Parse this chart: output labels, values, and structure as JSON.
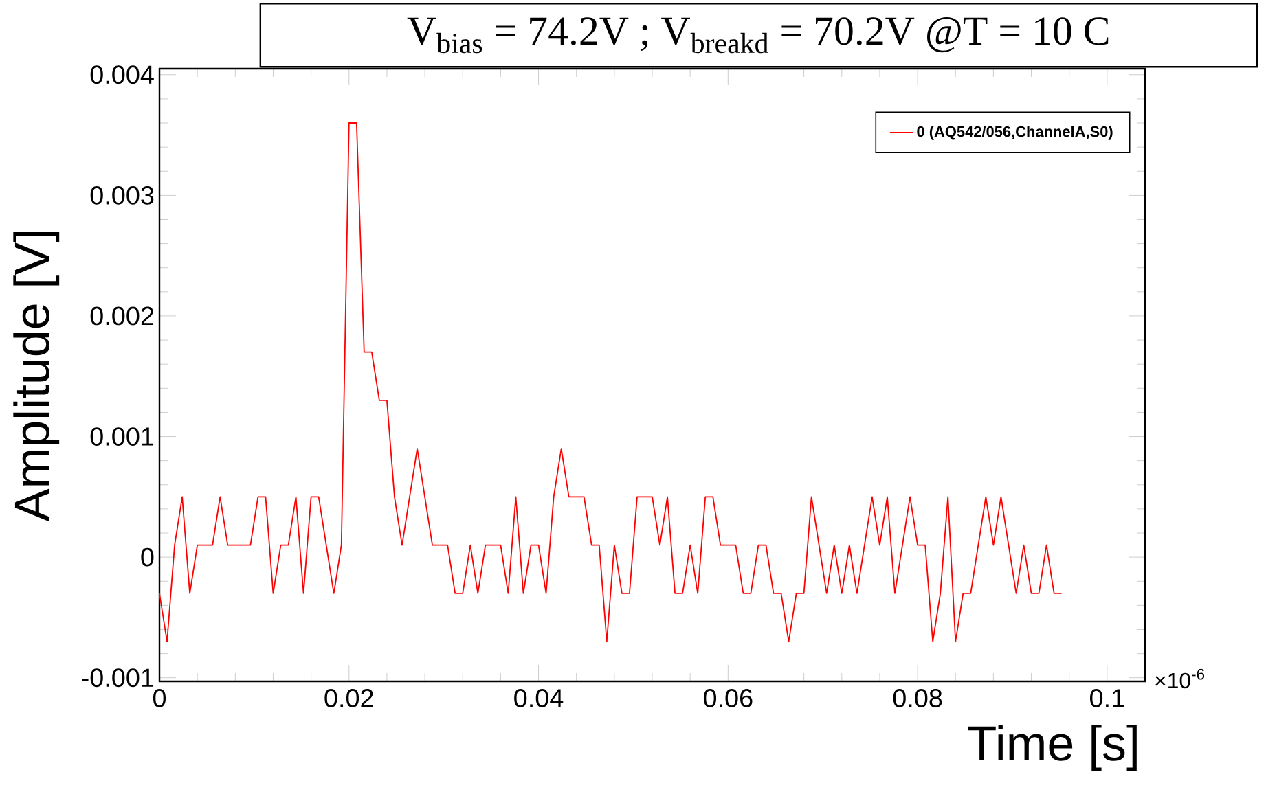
{
  "chart_data": {
    "type": "line",
    "title": "V$_{bias}$ = 74.2V ;  V$_{breakd}$ = 70.2V     @T = 10 C",
    "xlabel": "Time [s]",
    "ylabel": "Amplitude [V]",
    "annotations": [
      "×10$^{-6}$"
    ],
    "xlim": [
      0,
      0.104
    ],
    "ylim": [
      -0.00103,
      0.00405
    ],
    "xticks": [
      0,
      0.02,
      0.04,
      0.06,
      0.08,
      0.1
    ],
    "yticks": [
      -0.001,
      0,
      0.001,
      0.002,
      0.003,
      0.004
    ],
    "legend": "top right",
    "series": [
      {
        "name": "0 (AQ542/056,ChannelA,S0)",
        "color": "#ff0000",
        "x": [
          0,
          0.0008,
          0.0016,
          0.0024,
          0.0032,
          0.004,
          0.0048,
          0.0056,
          0.0064,
          0.0072,
          0.008,
          0.0088,
          0.0096,
          0.0104,
          0.0112,
          0.012,
          0.0128,
          0.0136,
          0.0144,
          0.0152,
          0.016,
          0.0168,
          0.0176,
          0.0184,
          0.0192,
          0.02,
          0.0208,
          0.0216,
          0.0224,
          0.0232,
          0.024,
          0.0248,
          0.0256,
          0.0264,
          0.0272,
          0.028,
          0.0288,
          0.0296,
          0.0304,
          0.0312,
          0.032,
          0.0328,
          0.0336,
          0.0344,
          0.0352,
          0.036,
          0.0368,
          0.0376,
          0.0384,
          0.0392,
          0.04,
          0.0408,
          0.0416,
          0.0424,
          0.0432,
          0.044,
          0.0448,
          0.0456,
          0.0464,
          0.0472,
          0.048,
          0.0488,
          0.0496,
          0.0504,
          0.0512,
          0.052,
          0.0528,
          0.0536,
          0.0544,
          0.0552,
          0.056,
          0.0568,
          0.0576,
          0.0584,
          0.0592,
          0.06,
          0.0608,
          0.0616,
          0.0624,
          0.0632,
          0.064,
          0.0648,
          0.0656,
          0.0664,
          0.0672,
          0.068,
          0.0688,
          0.0696,
          0.0704,
          0.0712,
          0.072,
          0.0728,
          0.0736,
          0.0744,
          0.0752,
          0.076,
          0.0768,
          0.0776,
          0.0784,
          0.0792,
          0.08,
          0.0808,
          0.0816,
          0.0824,
          0.0832,
          0.084,
          0.0848,
          0.0856,
          0.0864,
          0.0872,
          0.088,
          0.0888,
          0.0896,
          0.0904,
          0.0912,
          0.092,
          0.0928,
          0.0936,
          0.0944,
          0.0952
        ],
        "values": [
          -0.0003,
          -0.0007,
          0.0001,
          0.0005,
          -0.0003,
          0.0001,
          0.0001,
          0.0001,
          0.0005,
          0.0001,
          0.0001,
          0.0001,
          0.0001,
          0.0005,
          0.0005,
          -0.0003,
          0.0001,
          0.0001,
          0.0005,
          -0.0003,
          0.0005,
          0.0005,
          0.0001,
          -0.0003,
          0.0001,
          0.0036,
          0.0036,
          0.0017,
          0.0017,
          0.0013,
          0.0013,
          0.0005,
          0.0001,
          0.0005,
          0.0009,
          0.0005,
          0.0001,
          0.0001,
          0.0001,
          -0.0003,
          -0.0003,
          0.0001,
          -0.0003,
          0.0001,
          0.0001,
          0.0001,
          -0.0003,
          0.0005,
          -0.0003,
          0.0001,
          0.0001,
          -0.0003,
          0.0005,
          0.0009,
          0.0005,
          0.0005,
          0.0005,
          0.0001,
          0.0001,
          -0.0007,
          0.0001,
          -0.0003,
          -0.0003,
          0.0005,
          0.0005,
          0.0005,
          0.0001,
          0.0005,
          -0.0003,
          -0.0003,
          0.0001,
          -0.0003,
          0.0005,
          0.0005,
          0.0001,
          0.0001,
          0.0001,
          -0.0003,
          -0.0003,
          0.0001,
          0.0001,
          -0.0003,
          -0.0003,
          -0.0007,
          -0.0003,
          -0.0003,
          0.0005,
          0.0001,
          -0.0003,
          0.0001,
          -0.0003,
          0.0001,
          -0.0003,
          0.0001,
          0.0005,
          0.0001,
          0.0005,
          -0.0003,
          0.0001,
          0.0005,
          0.0001,
          0.0001,
          -0.0007,
          -0.0003,
          0.0005,
          -0.0007,
          -0.0003,
          -0.0003,
          0.0001,
          0.0005,
          0.0001,
          0.0005,
          0.0001,
          -0.0003,
          0.0001,
          -0.0003,
          -0.0003,
          0.0001,
          -0.0003,
          -0.0003
        ]
      }
    ]
  }
}
